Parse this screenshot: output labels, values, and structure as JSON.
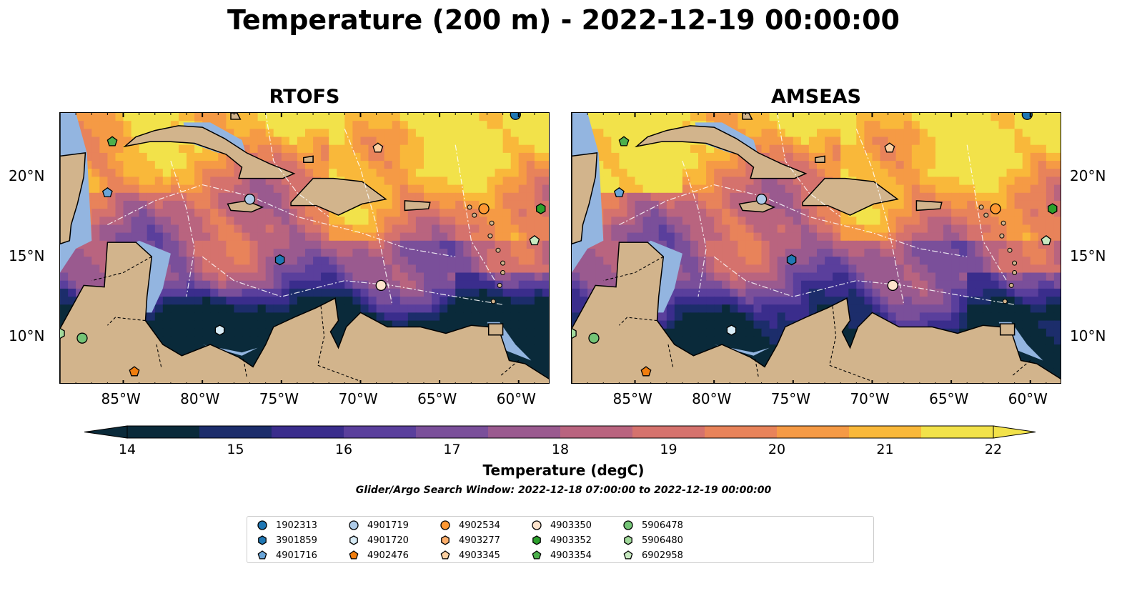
{
  "title": "Temperature (200 m) - 2022-12-19 00:00:00",
  "panels": [
    {
      "title": "RTOFS"
    },
    {
      "title": "AMSEAS"
    }
  ],
  "axes": {
    "lon_ticks": [
      "85°W",
      "80°W",
      "75°W",
      "70°W",
      "65°W",
      "60°W"
    ],
    "lat_ticks": [
      "20°N",
      "15°N",
      "10°N"
    ],
    "lon_range": [
      -89,
      -58
    ],
    "lat_range": [
      7,
      24
    ]
  },
  "colorbar": {
    "label": "Temperature (degC)",
    "ticks": [
      "14",
      "15",
      "16",
      "17",
      "18",
      "19",
      "20",
      "21",
      "22"
    ],
    "range": [
      14,
      22
    ],
    "extend": "both",
    "colors": [
      "#0a2a3a",
      "#1c2d6b",
      "#3a2d8c",
      "#5a3f9c",
      "#7a4f9a",
      "#9a5a8f",
      "#b9647f",
      "#d5726d",
      "#e8835a",
      "#f59a45",
      "#f9b83a",
      "#f2e24a"
    ]
  },
  "search_window": "Glider/Argo Search Window: 2022-12-18 07:00:00 to 2022-12-19 00:00:00",
  "legend": [
    {
      "label": "1902313",
      "marker": "circle",
      "color": "#1f77b4"
    },
    {
      "label": "3901859",
      "marker": "hexagon",
      "color": "#1f77b4"
    },
    {
      "label": "4901716",
      "marker": "pentagon",
      "color": "#6aa5d8"
    },
    {
      "label": "4901719",
      "marker": "circle",
      "color": "#aecbe8"
    },
    {
      "label": "4901720",
      "marker": "hexagon",
      "color": "#d8ecf7"
    },
    {
      "label": "4902476",
      "marker": "pentagon",
      "color": "#f07d0d"
    },
    {
      "label": "4902534",
      "marker": "circle",
      "color": "#fd9833"
    },
    {
      "label": "4903277",
      "marker": "hexagon",
      "color": "#fdae6b"
    },
    {
      "label": "4903345",
      "marker": "pentagon",
      "color": "#fdd0a2"
    },
    {
      "label": "4903350",
      "marker": "circle",
      "color": "#fde3cc"
    },
    {
      "label": "4903352",
      "marker": "hexagon",
      "color": "#2ca02c"
    },
    {
      "label": "4903354",
      "marker": "pentagon",
      "color": "#4cb04c"
    },
    {
      "label": "5906478",
      "marker": "circle",
      "color": "#74c476"
    },
    {
      "label": "5906480",
      "marker": "hexagon",
      "color": "#a1d99b"
    },
    {
      "label": "6902958",
      "marker": "pentagon",
      "color": "#c7e9c0"
    }
  ],
  "floats": [
    {
      "id": "1902313",
      "lon": -60.2,
      "lat": 23.9
    },
    {
      "id": "3901859",
      "lon": -75.1,
      "lat": 14.8
    },
    {
      "id": "4901716",
      "lon": -86.0,
      "lat": 19.0
    },
    {
      "id": "4901719",
      "lon": -77.0,
      "lat": 18.6
    },
    {
      "id": "4901720",
      "lon": -78.9,
      "lat": 10.4
    },
    {
      "id": "4902476",
      "lon": -84.3,
      "lat": 7.8
    },
    {
      "id": "4902534",
      "lon": -62.2,
      "lat": 18.0
    },
    {
      "id": "4903345",
      "lon": -68.9,
      "lat": 21.8
    },
    {
      "id": "4903350",
      "lon": -68.7,
      "lat": 13.2
    },
    {
      "id": "4903352",
      "lon": -58.6,
      "lat": 18.0
    },
    {
      "id": "4903354",
      "lon": -85.7,
      "lat": 22.2
    },
    {
      "id": "5906478",
      "lon": -87.6,
      "lat": 9.9
    },
    {
      "id": "5906480",
      "lon": -89.0,
      "lat": 10.2
    },
    {
      "id": "6902958",
      "lon": -59.0,
      "lat": 16.0
    }
  ]
}
